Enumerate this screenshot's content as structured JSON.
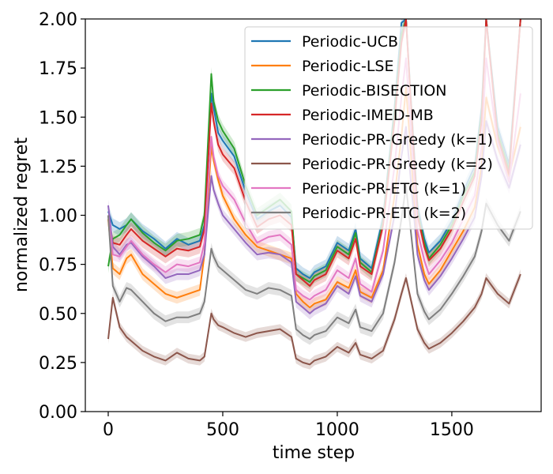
{
  "chart_data": {
    "type": "line",
    "title": "",
    "xlabel": "time step",
    "ylabel": "normalized regret",
    "xlim": [
      -100,
      1890
    ],
    "ylim": [
      0,
      2.0
    ],
    "x_ticks": [
      0,
      500,
      1000,
      1500
    ],
    "y_ticks": [
      0.0,
      0.25,
      0.5,
      0.75,
      1.0,
      1.25,
      1.5,
      1.75,
      2.0
    ],
    "y_tick_labels": [
      "0.00",
      "0.25",
      "0.50",
      "0.75",
      "1.00",
      "1.25",
      "1.50",
      "1.75",
      "2.00"
    ],
    "legend_position": "top-right",
    "x": [
      0,
      20,
      50,
      80,
      100,
      150,
      200,
      250,
      300,
      350,
      400,
      420,
      450,
      460,
      480,
      500,
      550,
      600,
      650,
      700,
      750,
      800,
      820,
      850,
      880,
      900,
      950,
      1000,
      1050,
      1080,
      1100,
      1150,
      1200,
      1250,
      1280,
      1300,
      1350,
      1380,
      1400,
      1450,
      1500,
      1550,
      1600,
      1630,
      1650,
      1700,
      1750,
      1800
    ],
    "series": [
      {
        "name": "Periodic-UCB",
        "color": "#1f77b4",
        "band": 0.035,
        "values": [
          1.02,
          0.95,
          0.93,
          0.95,
          0.98,
          0.92,
          0.88,
          0.83,
          0.88,
          0.85,
          0.87,
          0.95,
          1.62,
          1.55,
          1.42,
          1.38,
          1.3,
          1.12,
          0.98,
          1.02,
          1.05,
          0.99,
          0.73,
          0.7,
          0.68,
          0.71,
          0.74,
          0.86,
          0.82,
          0.93,
          0.78,
          0.73,
          0.99,
          1.55,
          1.98,
          2.0,
          1.05,
          0.88,
          0.81,
          0.87,
          0.97,
          1.12,
          1.25,
          1.55,
          2.0,
          1.45,
          1.26,
          2.0
        ]
      },
      {
        "name": "Periodic-LSE",
        "color": "#ff7f0e",
        "band": 0.03,
        "values": [
          0.98,
          0.73,
          0.7,
          0.78,
          0.8,
          0.7,
          0.65,
          0.6,
          0.58,
          0.6,
          0.62,
          0.8,
          1.35,
          1.28,
          1.18,
          1.1,
          0.98,
          0.9,
          0.84,
          0.82,
          0.8,
          0.78,
          0.6,
          0.56,
          0.53,
          0.55,
          0.57,
          0.66,
          0.63,
          0.72,
          0.61,
          0.58,
          0.72,
          1.1,
          1.4,
          1.65,
          0.85,
          0.7,
          0.65,
          0.72,
          0.82,
          0.92,
          1.04,
          1.25,
          1.6,
          1.35,
          1.2,
          1.45
        ]
      },
      {
        "name": "Periodic-BISECTION",
        "color": "#2ca02c",
        "band": 0.035,
        "values": [
          0.74,
          0.88,
          0.9,
          0.95,
          0.98,
          0.91,
          0.86,
          0.82,
          0.87,
          0.88,
          0.9,
          1.0,
          1.72,
          1.58,
          1.48,
          1.43,
          1.34,
          1.15,
          1.0,
          1.04,
          1.08,
          1.02,
          0.7,
          0.68,
          0.66,
          0.69,
          0.72,
          0.84,
          0.8,
          0.91,
          0.76,
          0.71,
          0.97,
          1.52,
          1.92,
          2.0,
          1.02,
          0.86,
          0.78,
          0.85,
          0.95,
          1.1,
          1.22,
          1.52,
          2.0,
          1.42,
          1.23,
          2.0
        ]
      },
      {
        "name": "Periodic-IMED-MB",
        "color": "#d62728",
        "band": 0.035,
        "values": [
          1.0,
          0.86,
          0.85,
          0.9,
          0.93,
          0.87,
          0.83,
          0.79,
          0.83,
          0.82,
          0.84,
          0.93,
          1.57,
          1.48,
          1.36,
          1.31,
          1.24,
          1.07,
          0.94,
          0.98,
          1.0,
          0.95,
          0.7,
          0.67,
          0.64,
          0.67,
          0.7,
          0.82,
          0.78,
          0.88,
          0.74,
          0.7,
          0.95,
          1.48,
          1.88,
          2.0,
          1.0,
          0.84,
          0.77,
          0.83,
          0.93,
          1.07,
          1.2,
          1.48,
          2.0,
          1.4,
          1.21,
          2.0
        ]
      },
      {
        "name": "Periodic-PR-Greedy (k=1)",
        "color": "#9467bd",
        "band": 0.03,
        "values": [
          1.05,
          0.84,
          0.8,
          0.85,
          0.86,
          0.79,
          0.74,
          0.68,
          0.7,
          0.7,
          0.72,
          0.8,
          1.2,
          1.13,
          1.06,
          1.0,
          0.93,
          0.86,
          0.8,
          0.81,
          0.8,
          0.76,
          0.56,
          0.53,
          0.5,
          0.52,
          0.55,
          0.64,
          0.6,
          0.69,
          0.59,
          0.56,
          0.7,
          1.0,
          1.3,
          1.45,
          0.8,
          0.67,
          0.62,
          0.69,
          0.78,
          0.88,
          0.99,
          1.2,
          1.48,
          1.28,
          1.14,
          1.36
        ]
      },
      {
        "name": "Periodic-PR-Greedy (k=2)",
        "color": "#8c564b",
        "band": 0.025,
        "values": [
          0.37,
          0.58,
          0.43,
          0.38,
          0.36,
          0.31,
          0.28,
          0.26,
          0.3,
          0.27,
          0.26,
          0.28,
          0.5,
          0.47,
          0.44,
          0.43,
          0.4,
          0.38,
          0.4,
          0.41,
          0.42,
          0.38,
          0.27,
          0.25,
          0.24,
          0.26,
          0.28,
          0.33,
          0.3,
          0.35,
          0.29,
          0.27,
          0.31,
          0.47,
          0.6,
          0.68,
          0.42,
          0.35,
          0.32,
          0.35,
          0.4,
          0.46,
          0.53,
          0.6,
          0.68,
          0.6,
          0.55,
          0.7
        ]
      },
      {
        "name": "Periodic-PR-ETC (k=1)",
        "color": "#e377c2",
        "band": 0.03,
        "values": [
          1.0,
          0.8,
          0.79,
          0.84,
          0.87,
          0.8,
          0.75,
          0.71,
          0.75,
          0.74,
          0.76,
          0.86,
          1.4,
          1.3,
          1.2,
          1.15,
          1.08,
          0.96,
          0.86,
          0.89,
          0.9,
          0.85,
          0.62,
          0.59,
          0.57,
          0.59,
          0.62,
          0.72,
          0.68,
          0.78,
          0.65,
          0.61,
          0.82,
          1.25,
          1.6,
          1.8,
          0.92,
          0.77,
          0.7,
          0.77,
          0.86,
          0.98,
          1.1,
          1.35,
          1.8,
          1.37,
          1.17,
          1.62
        ]
      },
      {
        "name": "Periodic-PR-ETC (k=2)",
        "color": "#7f7f7f",
        "band": 0.03,
        "values": [
          1.0,
          0.64,
          0.56,
          0.63,
          0.62,
          0.56,
          0.5,
          0.46,
          0.48,
          0.48,
          0.5,
          0.56,
          0.83,
          0.79,
          0.74,
          0.72,
          0.67,
          0.62,
          0.6,
          0.63,
          0.62,
          0.59,
          0.42,
          0.39,
          0.37,
          0.39,
          0.41,
          0.48,
          0.45,
          0.52,
          0.43,
          0.41,
          0.5,
          0.76,
          0.98,
          1.15,
          0.6,
          0.51,
          0.47,
          0.52,
          0.6,
          0.69,
          0.79,
          0.92,
          1.06,
          0.95,
          0.87,
          1.02
        ]
      }
    ]
  }
}
